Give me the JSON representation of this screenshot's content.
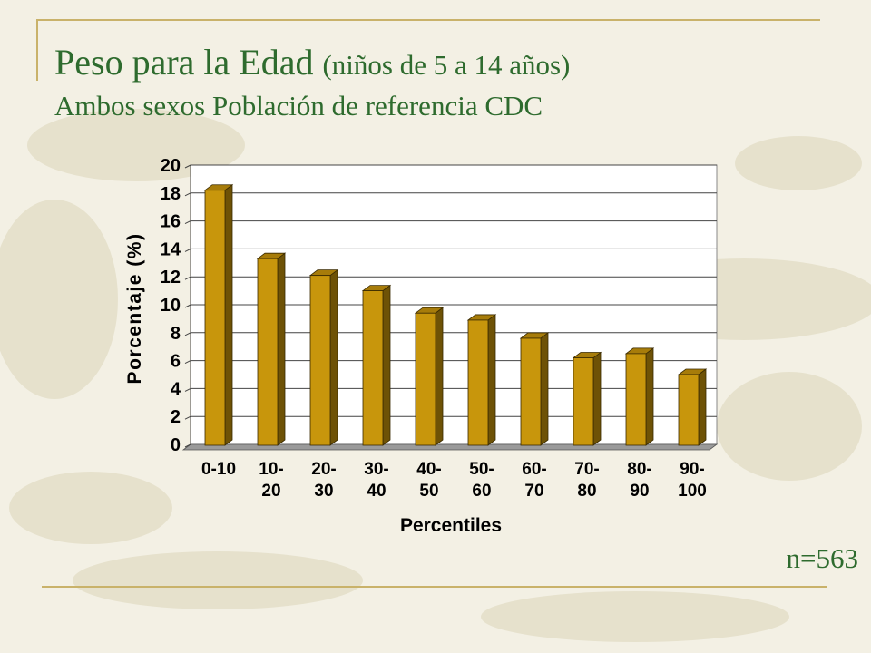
{
  "slide": {
    "title_main": "Peso  para la Edad",
    "title_paren": "(niños de 5 a 14 años)",
    "subtitle": "Ambos sexos Población de referencia CDC",
    "sample_note": "n=563"
  },
  "colors": {
    "background": "#f3f0e4",
    "title_text": "#2e6b2e",
    "accent_rule": "#c9b26a",
    "bar_face": "#c8960c",
    "bar_top": "#a77c0a",
    "bar_side": "#6e5206"
  },
  "chart_data": {
    "type": "bar",
    "style": "3d",
    "categories": [
      [
        "0-10"
      ],
      [
        "10-",
        "20"
      ],
      [
        "20-",
        "30"
      ],
      [
        "30-",
        "40"
      ],
      [
        "40-",
        "50"
      ],
      [
        "50-",
        "60"
      ],
      [
        "60-",
        "70"
      ],
      [
        "70-",
        "80"
      ],
      [
        "80-",
        "90"
      ],
      [
        "90-",
        "100"
      ]
    ],
    "values": [
      18.2,
      13.3,
      12.1,
      11.0,
      9.4,
      8.9,
      7.6,
      6.2,
      6.5,
      5.0
    ],
    "title": "",
    "xlabel": "Percentiles",
    "ylabel": "Porcentaje (%)",
    "ylim": [
      0,
      20
    ],
    "yticks": [
      0,
      2,
      4,
      6,
      8,
      10,
      12,
      14,
      16,
      18,
      20
    ],
    "grid": true,
    "legend": "none"
  }
}
